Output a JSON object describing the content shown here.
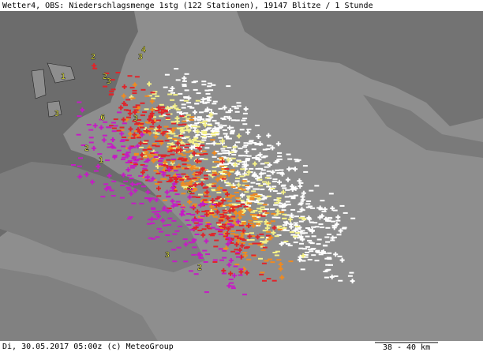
{
  "header": {
    "title": "Wetter4, OBS: Niederschlagsmenge 1stg (122 Stationen), 19147 Blitze / 1 Stunde"
  },
  "footer": {
    "timestamp": "Di, 30.05.2017 05:00z (c) MeteoGroup",
    "scale": "38 - 40 km"
  },
  "stations": [
    "2",
    "4",
    "3",
    "1",
    "2",
    "3",
    "3",
    "6",
    "3",
    "2",
    "1",
    "2",
    "3",
    "2"
  ]
}
